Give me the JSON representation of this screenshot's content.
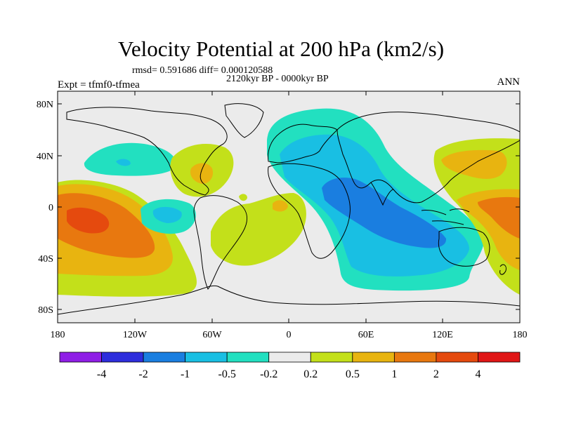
{
  "title": "Velocity Potential at 200 hPa (km2/s)",
  "stats_line": "rmsd= 0.591686 diff= 0.000120588",
  "period_line": "2120kyr BP - 0000kyr BP",
  "experiment_line": "Expt = tfmf0-tfmea",
  "season": "ANN",
  "lat_labels": [
    "80N",
    "40N",
    "0",
    "40S",
    "80S"
  ],
  "lon_labels": [
    "180",
    "120W",
    "60W",
    "0",
    "60E",
    "120E",
    "180"
  ],
  "colorbar": {
    "labels": [
      "-4",
      "-2",
      "-1",
      "-0.5",
      "-0.2",
      "0.2",
      "0.5",
      "1",
      "2",
      "4"
    ],
    "colors": [
      "#8f1ee6",
      "#2d2ddc",
      "#1a7ee0",
      "#19bfe3",
      "#22e0c0",
      "#ebebeb",
      "#c3e01a",
      "#e8b410",
      "#e8780f",
      "#e54a0e",
      "#e01616"
    ]
  }
}
